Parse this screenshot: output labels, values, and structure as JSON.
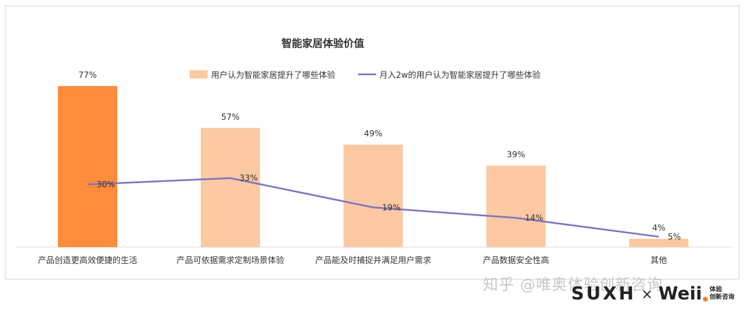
{
  "chart_data": {
    "type": "bar",
    "title": "智能家居体验价值",
    "categories": [
      "产品创造更高效便捷的生活",
      "产品可依据需求定制场景体验",
      "产品能及时捕捉并满足用户需求",
      "产品数据安全性高",
      "其他"
    ],
    "series": [
      {
        "name": "用户认为智能家居提升了哪些体验",
        "type": "bar",
        "values": [
          77,
          57,
          49,
          39,
          4
        ],
        "labels": [
          "77%",
          "57%",
          "49%",
          "39%",
          "4%"
        ],
        "color": "#fdc9a2",
        "highlight_color": "#ff8c3a"
      },
      {
        "name": "月入2w的用户认为智能家居提升了哪些体验",
        "type": "line",
        "values": [
          30,
          33,
          19,
          14,
          5
        ],
        "labels": [
          "30%",
          "33%",
          "19%",
          "14%",
          "5%"
        ],
        "color": "#7b74c9"
      }
    ],
    "ylim": [
      0,
      80
    ],
    "grid": false,
    "legend_position": "top"
  },
  "watermark": "知乎 @唯奥体验创新咨询",
  "brand": {
    "logo_left": "SUXH",
    "separator": "×",
    "logo_right": "Weii",
    "sub_line1": "体验",
    "sub_line2": "创新咨询"
  }
}
